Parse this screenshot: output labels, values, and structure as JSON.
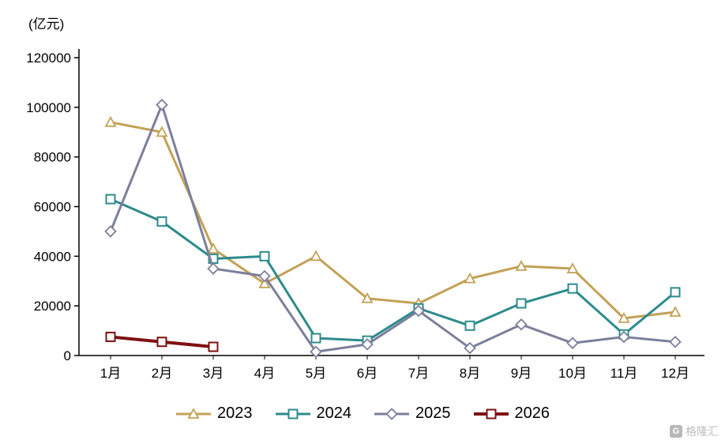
{
  "unit_label": "(亿元)",
  "watermark": "格隆汇",
  "chart_data": {
    "type": "line",
    "title": "",
    "xlabel": "",
    "ylabel": "(亿元)",
    "ylim": [
      0,
      120000
    ],
    "ytick_step": 20000,
    "grid": false,
    "legend_position": "bottom",
    "categories": [
      "1月",
      "2月",
      "3月",
      "4月",
      "5月",
      "6月",
      "7月",
      "8月",
      "9月",
      "10月",
      "11月",
      "12月"
    ],
    "series": [
      {
        "name": "2023",
        "color": "#C3A156",
        "marker": "triangle",
        "width": 3,
        "values": [
          94000,
          90000,
          43000,
          29000,
          40000,
          23000,
          21000,
          31000,
          36000,
          35000,
          15000,
          17500
        ]
      },
      {
        "name": "2024",
        "color": "#2E8B8C",
        "marker": "square",
        "width": 3,
        "values": [
          63000,
          54000,
          39000,
          40000,
          7000,
          6000,
          19000,
          12000,
          21000,
          27000,
          8500,
          25500
        ]
      },
      {
        "name": "2025",
        "color": "#7C7F9B",
        "marker": "diamond",
        "width": 3,
        "values": [
          50000,
          101000,
          35000,
          32000,
          1500,
          4500,
          18000,
          3000,
          12500,
          5000,
          7500,
          5500
        ]
      },
      {
        "name": "2026",
        "color": "#7E1112",
        "marker": "square",
        "width": 4,
        "values": [
          7500,
          5500,
          3500,
          null,
          null,
          null,
          null,
          null,
          null,
          null,
          null,
          null
        ]
      }
    ]
  }
}
